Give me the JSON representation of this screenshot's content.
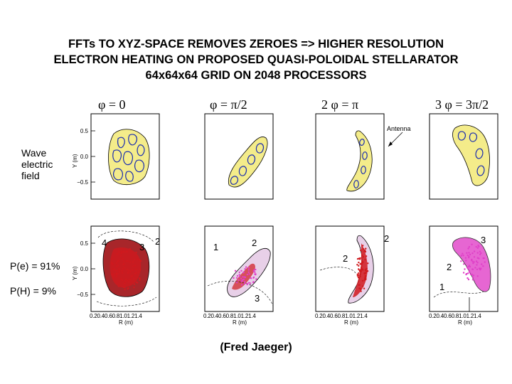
{
  "title": {
    "line1": "FFTs TO XYZ-SPACE REMOVES ZEROES => HIGHER RESOLUTION",
    "line2": "ELECTRON HEATING ON PROPOSED QUASI-POLOIDAL STELLARATOR",
    "line3": "64x64x64 GRID ON 2048 PROCESSORS"
  },
  "phi_labels": [
    "φ = 0",
    "φ = π/2",
    "2 φ = π",
    "3 φ = 3π/2"
  ],
  "row_labels": {
    "wave_line1": "Wave",
    "wave_line2": "electric",
    "wave_line3": "field",
    "pe": "P(e) = 91%",
    "ph": "P(H) =  9%"
  },
  "axis": {
    "ylabel": "Y (m)",
    "yticks": [
      "0.5",
      "0.0",
      "−0.5"
    ],
    "xticks": "0.20.40.60.81.01.21.4",
    "xlabel": "R (m)"
  },
  "antenna_label": "Antenna",
  "contour_labels": {
    "p1": [
      "4",
      "3",
      "2"
    ],
    "p2": [
      "1",
      "2",
      "3"
    ],
    "p3": [
      "2",
      "2"
    ],
    "p4": [
      "3",
      "2",
      "1"
    ]
  },
  "credit": "(Fred Jaeger)",
  "colors": {
    "wave_fill": "#f4ec8a",
    "wave_contour": "#1a2db0",
    "heating_red": "#d0191e",
    "heating_magenta": "#e040c8",
    "outline": "#000000"
  }
}
